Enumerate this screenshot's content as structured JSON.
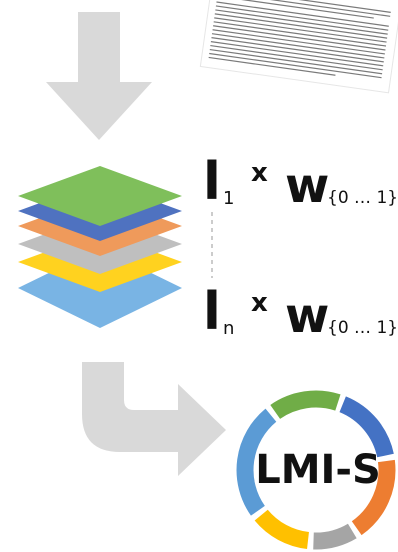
{
  "formulas": [
    {
      "layer_symbol": "l",
      "index": "1",
      "operator": "x",
      "weight_symbol": "w",
      "range": "{0 … 1}"
    },
    {
      "layer_symbol": "l",
      "index": "n",
      "operator": "x",
      "weight_symbol": "w",
      "range": "{0 … 1}"
    }
  ],
  "output_label": "LMI-S",
  "colors": {
    "arrow": "#d9d9d9",
    "layer_green": "#7fbf5b",
    "layer_blue": "#4f72c0",
    "layer_orange": "#ef9a5b",
    "layer_gray": "#bfbfbf",
    "layer_yellow": "#ffd21f",
    "layer_lightblue": "#79b4e4",
    "ring_green": "#70ad47",
    "ring_blue": "#4472c4",
    "ring_orange": "#ed7d31",
    "ring_gray": "#a5a5a5",
    "ring_yellow": "#ffc000",
    "ring_lightblue": "#5b9bd5"
  }
}
